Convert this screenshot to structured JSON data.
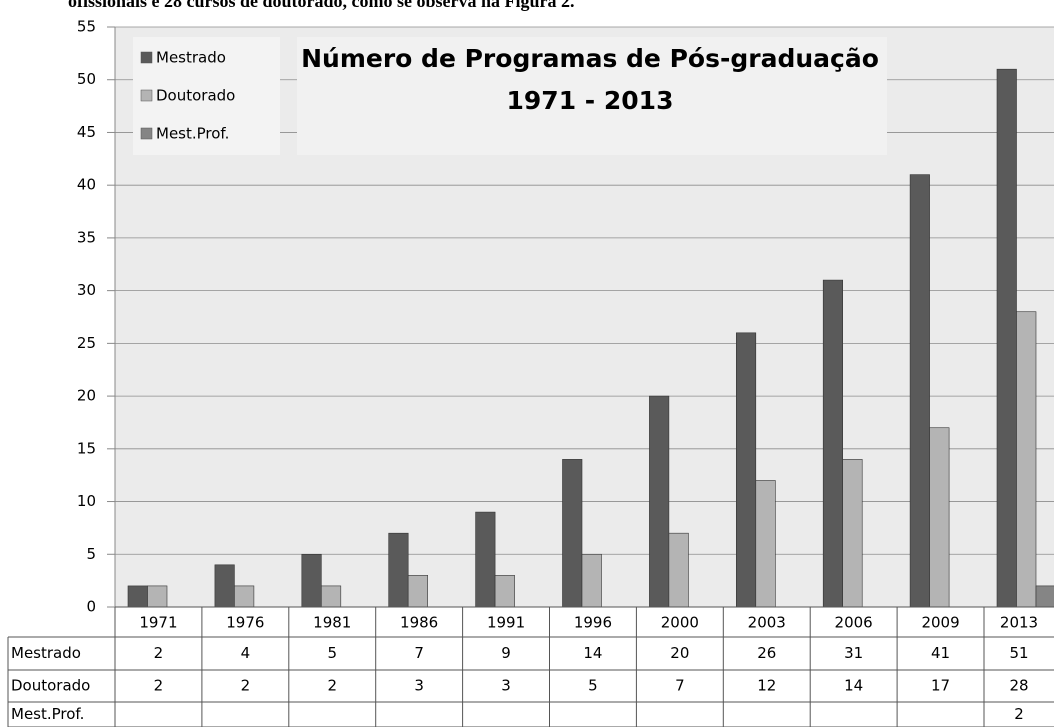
{
  "header_text": "ofissionais e 28 cursos de doutorado, como se observa na Figura 2.",
  "chart_data": {
    "type": "bar",
    "title": "Número de Programas de Pós-graduação",
    "subtitle": "1971 - 2013",
    "categories": [
      "1971",
      "1976",
      "1981",
      "1986",
      "1991",
      "1996",
      "2000",
      "2003",
      "2006",
      "2009",
      "2013"
    ],
    "series": [
      {
        "name": "Mestrado",
        "color": "#5a5a5a",
        "values": [
          2,
          4,
          5,
          7,
          9,
          14,
          20,
          26,
          31,
          41,
          51
        ]
      },
      {
        "name": "Doutorado",
        "color": "#b4b4b4",
        "values": [
          2,
          2,
          2,
          3,
          3,
          5,
          7,
          12,
          14,
          17,
          28
        ]
      },
      {
        "name": "Mest.Prof.",
        "color": "#858585",
        "values": [
          null,
          null,
          null,
          null,
          null,
          null,
          null,
          null,
          null,
          null,
          2
        ]
      }
    ],
    "ylim": [
      0,
      55
    ],
    "yticks": [
      0,
      5,
      10,
      15,
      20,
      25,
      30,
      35,
      40,
      45,
      50,
      55
    ],
    "grid": true,
    "legend": "top-left"
  }
}
